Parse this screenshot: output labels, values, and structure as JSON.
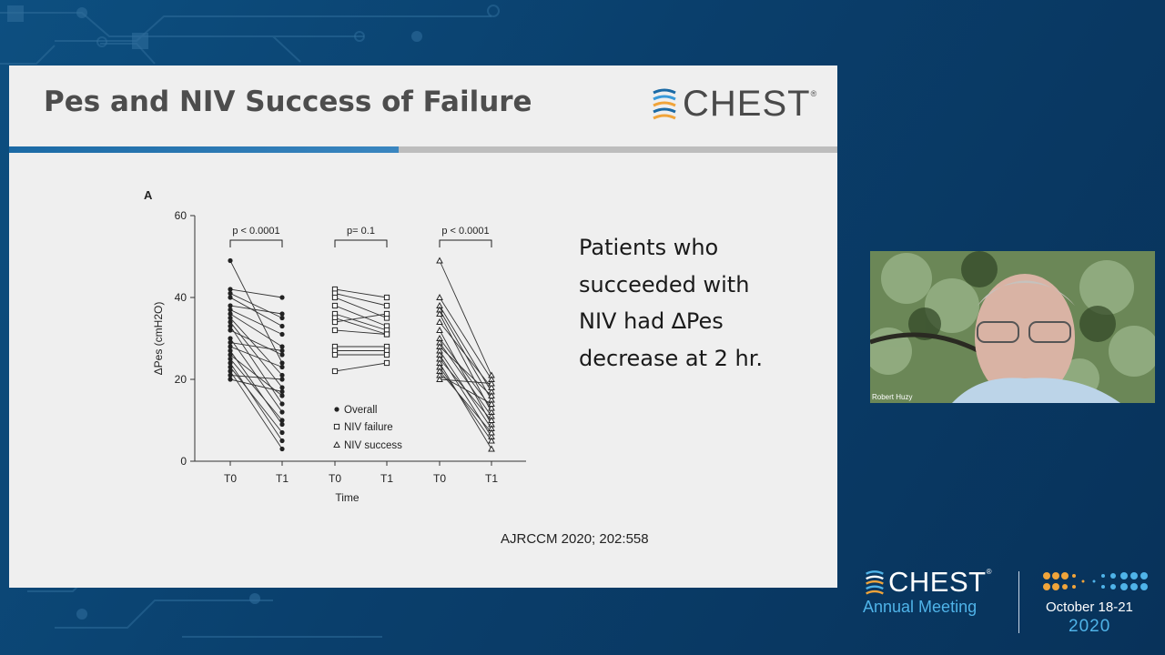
{
  "slide": {
    "title": "Pes and NIV Success of Failure",
    "logo_text": "CHEST",
    "logo_reg": "®",
    "bullet_lines": [
      "Patients who",
      "succeeded with",
      "NIV had ∆Pes",
      "decrease at 2 hr."
    ],
    "citation": "AJRCCM 2020; 202:558"
  },
  "video": {
    "speaker_name": "Robert Huzy"
  },
  "footer": {
    "brand": "CHEST",
    "brand_reg": "®",
    "subtitle": "Annual Meeting",
    "dates": "October 18-21",
    "year": "2020"
  },
  "colors": {
    "background": "#0a3f6c",
    "slide_bg": "#efefef",
    "title_text": "#4d4d4d",
    "accent_blue": "#1b6aa5",
    "accent_orange": "#f0a43a",
    "footer_blue": "#4fb3e8"
  },
  "chart_data": {
    "type": "line",
    "panel_label": "A",
    "ylabel": "ΔPes (cmH2O)",
    "xlabel": "Time",
    "ylim": [
      0,
      60
    ],
    "yticks": [
      0,
      20,
      40,
      60
    ],
    "categories": [
      "T0",
      "T1",
      "T0",
      "T1",
      "T0",
      "T1"
    ],
    "legend": [
      "Overall",
      "NIV failure",
      "NIV success"
    ],
    "legend_position": "inside-bottom-right",
    "groups": [
      {
        "name": "Overall",
        "marker": "circle",
        "p_value": "p < 0.0001",
        "pairs": [
          [
            49,
            24
          ],
          [
            42,
            40
          ],
          [
            41,
            35
          ],
          [
            40,
            33
          ],
          [
            38,
            36
          ],
          [
            37,
            31
          ],
          [
            36,
            28
          ],
          [
            35,
            21
          ],
          [
            34,
            18
          ],
          [
            33,
            14
          ],
          [
            32,
            26
          ],
          [
            30,
            12
          ],
          [
            29,
            27
          ],
          [
            28,
            23
          ],
          [
            27,
            9
          ],
          [
            26,
            16
          ],
          [
            25,
            10
          ],
          [
            24,
            5
          ],
          [
            23,
            7
          ],
          [
            22,
            3
          ],
          [
            21,
            20
          ],
          [
            20,
            17
          ]
        ]
      },
      {
        "name": "NIV failure",
        "marker": "square",
        "p_value": "p= 0.1",
        "pairs": [
          [
            42,
            40
          ],
          [
            41,
            38
          ],
          [
            40,
            35
          ],
          [
            38,
            33
          ],
          [
            36,
            32
          ],
          [
            35,
            31
          ],
          [
            34,
            36
          ],
          [
            32,
            31
          ],
          [
            28,
            28
          ],
          [
            27,
            27
          ],
          [
            26,
            26
          ],
          [
            22,
            24
          ]
        ]
      },
      {
        "name": "NIV success",
        "marker": "triangle",
        "p_value": "p < 0.0001",
        "pairs": [
          [
            49,
            21
          ],
          [
            40,
            20
          ],
          [
            38,
            17
          ],
          [
            37,
            15
          ],
          [
            36,
            12
          ],
          [
            34,
            18
          ],
          [
            32,
            9
          ],
          [
            30,
            13
          ],
          [
            29,
            11
          ],
          [
            28,
            16
          ],
          [
            27,
            8
          ],
          [
            26,
            6
          ],
          [
            25,
            10
          ],
          [
            24,
            3
          ],
          [
            23,
            5
          ],
          [
            22,
            7
          ],
          [
            21,
            14
          ],
          [
            20,
            19
          ]
        ]
      }
    ]
  }
}
